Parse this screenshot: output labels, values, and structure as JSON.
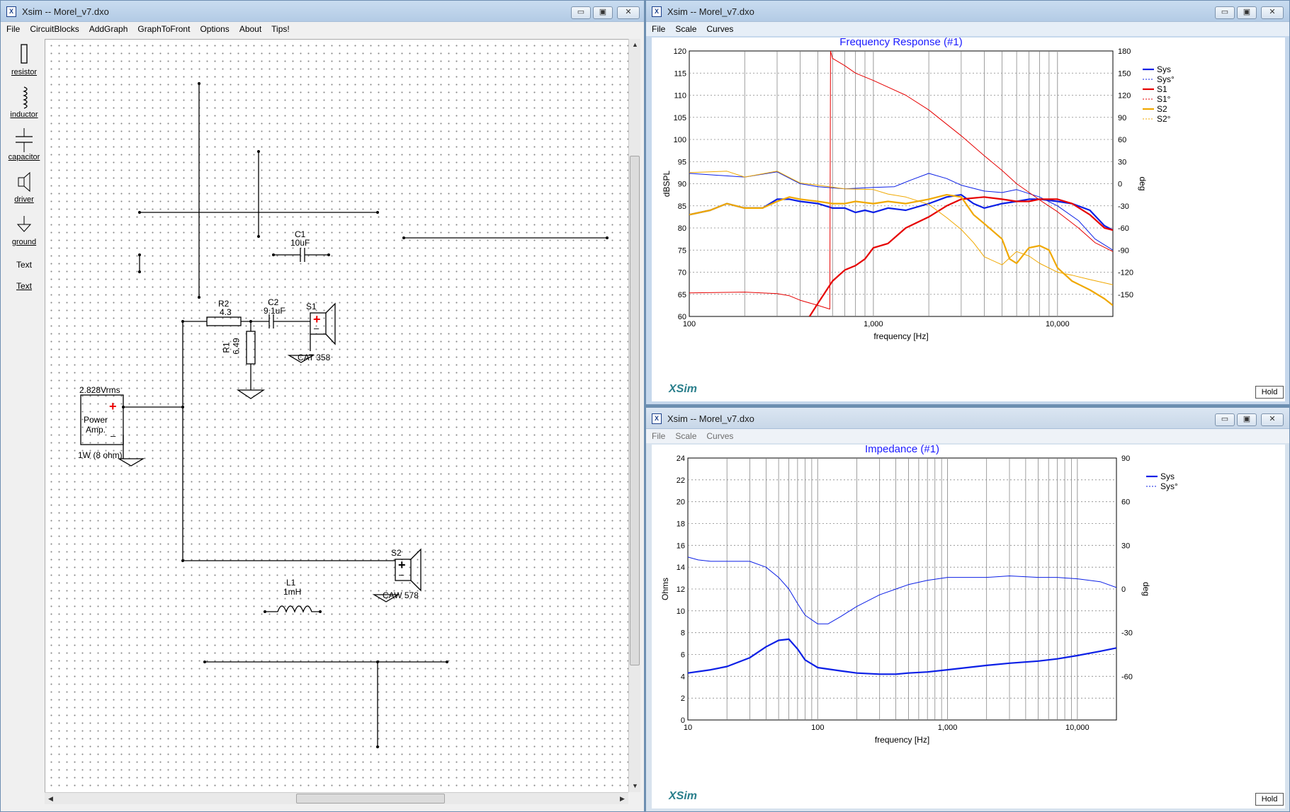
{
  "windows": {
    "schematic": {
      "title": "Xsim -- Morel_v7.dxo",
      "menu": [
        "File",
        "CircuitBlocks",
        "AddGraph",
        "GraphToFront",
        "Options",
        "About",
        "Tips!"
      ],
      "tools": [
        "resistor",
        "inductor",
        "capacitor",
        "driver",
        "ground",
        "Text",
        "Text"
      ],
      "components": {
        "source_voltage": "2.828Vrms",
        "amp_label_1": "Power",
        "amp_label_2": "Amp.",
        "amp_power": "1W (8 ohm)",
        "c1_name": "C1",
        "c1_value": "10uF",
        "r2_name": "R2",
        "r2_value": "4.3",
        "c2_name": "C2",
        "c2_value": "9.1uF",
        "r1_name": "R1",
        "r1_value": "6.49",
        "s1_name": "S1",
        "s1_model": "CAT 358",
        "s2_name": "S2",
        "s2_model": "CAW 578",
        "l1_name": "L1",
        "l1_value": "1mH",
        "plus": "+",
        "minus": "–"
      }
    },
    "freq": {
      "title": "Xsim -- Morel_v7.dxo",
      "menu": [
        "File",
        "Scale",
        "Curves"
      ],
      "hold": "Hold",
      "logo": "XSim"
    },
    "imp": {
      "title": "Xsim -- Morel_v7.dxo",
      "menu": [
        "File",
        "Scale",
        "Curves"
      ],
      "hold": "Hold",
      "logo": "XSim"
    },
    "controls": {
      "minimize": "▭",
      "maximize": "▣",
      "close": "✕"
    }
  },
  "chart_data": [
    {
      "type": "line",
      "title": "Frequency Response (#1)",
      "xlabel": "frequency [Hz]",
      "ylabel": "dBSPL",
      "y2label": "deg",
      "xscale": "log",
      "xlim": [
        100,
        20000
      ],
      "ylim": [
        60,
        120
      ],
      "y2lim": [
        -180,
        180
      ],
      "xticks": [
        "100",
        "1,000",
        "10,000"
      ],
      "yticks": [
        "60",
        "65",
        "70",
        "75",
        "80",
        "85",
        "90",
        "95",
        "100",
        "105",
        "110",
        "115",
        "120"
      ],
      "y2ticks": [
        "-150",
        "-120",
        "-90",
        "-60",
        "-30",
        "0",
        "30",
        "60",
        "90",
        "120",
        "150",
        "180"
      ],
      "grid": true,
      "legend_position": "top-right",
      "series": [
        {
          "name": "Sys",
          "axis": "left",
          "style": "solid-thick",
          "color": "#0b1fe6",
          "points": [
            [
              100,
              83
            ],
            [
              130,
              84
            ],
            [
              160,
              85.5
            ],
            [
              200,
              84.5
            ],
            [
              250,
              84.5
            ],
            [
              300,
              86.5
            ],
            [
              350,
              86.5
            ],
            [
              400,
              86
            ],
            [
              500,
              85.5
            ],
            [
              600,
              84.5
            ],
            [
              700,
              84.5
            ],
            [
              800,
              83.5
            ],
            [
              900,
              84
            ],
            [
              1000,
              83.5
            ],
            [
              1200,
              84.5
            ],
            [
              1500,
              84
            ],
            [
              2000,
              85.5
            ],
            [
              2500,
              87
            ],
            [
              3000,
              87.5
            ],
            [
              3500,
              85.5
            ],
            [
              4000,
              84.5
            ],
            [
              5000,
              85.5
            ],
            [
              6000,
              86
            ],
            [
              7000,
              86.5
            ],
            [
              8000,
              86.5
            ],
            [
              10000,
              86
            ],
            [
              12000,
              85.5
            ],
            [
              15000,
              84
            ],
            [
              18000,
              80.5
            ],
            [
              20000,
              79.5
            ]
          ]
        },
        {
          "name": "Sys°",
          "axis": "right",
          "style": "dotted",
          "color": "#0b1fe6",
          "points": [
            [
              100,
              14
            ],
            [
              200,
              9
            ],
            [
              300,
              16
            ],
            [
              400,
              0
            ],
            [
              500,
              -4
            ],
            [
              700,
              -7
            ],
            [
              1000,
              -5
            ],
            [
              1300,
              -4
            ],
            [
              1600,
              5
            ],
            [
              2000,
              14
            ],
            [
              2500,
              7
            ],
            [
              3000,
              -2
            ],
            [
              4000,
              -10
            ],
            [
              5000,
              -12
            ],
            [
              6000,
              -8
            ],
            [
              8000,
              -18
            ],
            [
              10000,
              -30
            ],
            [
              13000,
              -50
            ],
            [
              16000,
              -75
            ],
            [
              20000,
              -90
            ]
          ]
        },
        {
          "name": "S1",
          "axis": "left",
          "style": "solid-thick",
          "color": "#e60000",
          "points": [
            [
              450,
              60
            ],
            [
              500,
              63
            ],
            [
              600,
              68
            ],
            [
              700,
              70.5
            ],
            [
              800,
              71.5
            ],
            [
              900,
              73
            ],
            [
              1000,
              75.5
            ],
            [
              1200,
              76.5
            ],
            [
              1500,
              80
            ],
            [
              2000,
              82.5
            ],
            [
              2500,
              85
            ],
            [
              3000,
              86.5
            ],
            [
              4000,
              87
            ],
            [
              5000,
              86.5
            ],
            [
              6000,
              86
            ],
            [
              7000,
              86
            ],
            [
              8000,
              86.5
            ],
            [
              10000,
              86.5
            ],
            [
              12000,
              85.5
            ],
            [
              15000,
              83
            ],
            [
              18000,
              80
            ],
            [
              20000,
              79.5
            ]
          ]
        },
        {
          "name": "S1°",
          "axis": "right",
          "style": "dotted",
          "color": "#e60000",
          "points": [
            [
              100,
              -148
            ],
            [
              200,
              -147
            ],
            [
              300,
              -149
            ],
            [
              350,
              -152
            ],
            [
              400,
              -158
            ],
            [
              500,
              -165
            ],
            [
              580,
              -170
            ],
            [
              585,
              180
            ],
            [
              600,
              170
            ],
            [
              700,
              160
            ],
            [
              800,
              150
            ],
            [
              1000,
              140
            ],
            [
              1500,
              120
            ],
            [
              2000,
              100
            ],
            [
              3000,
              65
            ],
            [
              4000,
              38
            ],
            [
              5000,
              18
            ],
            [
              6000,
              0
            ],
            [
              8000,
              -22
            ],
            [
              10000,
              -38
            ],
            [
              13000,
              -60
            ],
            [
              16000,
              -80
            ],
            [
              20000,
              -92
            ]
          ]
        },
        {
          "name": "S2",
          "axis": "left",
          "style": "solid-thick",
          "color": "#f0a800",
          "points": [
            [
              100,
              83
            ],
            [
              130,
              84
            ],
            [
              160,
              85.5
            ],
            [
              200,
              84.5
            ],
            [
              250,
              84.5
            ],
            [
              300,
              86
            ],
            [
              350,
              87
            ],
            [
              400,
              86.5
            ],
            [
              500,
              86
            ],
            [
              600,
              85.5
            ],
            [
              700,
              85.5
            ],
            [
              800,
              86
            ],
            [
              1000,
              85.5
            ],
            [
              1200,
              86
            ],
            [
              1500,
              85.5
            ],
            [
              2000,
              86.5
            ],
            [
              2500,
              87.5
            ],
            [
              3000,
              87
            ],
            [
              3500,
              83
            ],
            [
              4000,
              81
            ],
            [
              5000,
              77.5
            ],
            [
              5500,
              73
            ],
            [
              6000,
              72
            ],
            [
              7000,
              75.5
            ],
            [
              8000,
              76
            ],
            [
              9000,
              75
            ],
            [
              10000,
              71
            ],
            [
              12000,
              68
            ],
            [
              15000,
              66
            ],
            [
              18000,
              64
            ],
            [
              20000,
              62.5
            ]
          ]
        },
        {
          "name": "S2°",
          "axis": "right",
          "style": "dotted",
          "color": "#f0a800",
          "points": [
            [
              100,
              15
            ],
            [
              160,
              17
            ],
            [
              200,
              9
            ],
            [
              300,
              17
            ],
            [
              400,
              1
            ],
            [
              500,
              -2
            ],
            [
              700,
              -7
            ],
            [
              1000,
              -8
            ],
            [
              1200,
              -14
            ],
            [
              1500,
              -18
            ],
            [
              2000,
              -28
            ],
            [
              2500,
              -46
            ],
            [
              3000,
              -62
            ],
            [
              3500,
              -80
            ],
            [
              4000,
              -99
            ],
            [
              5000,
              -110
            ],
            [
              6000,
              -92
            ],
            [
              7000,
              -98
            ],
            [
              8000,
              -108
            ],
            [
              10000,
              -120
            ],
            [
              12000,
              -124
            ],
            [
              15000,
              -130
            ],
            [
              20000,
              -137
            ]
          ]
        }
      ]
    },
    {
      "type": "line",
      "title": "Impedance (#1)",
      "xlabel": "frequency [Hz]",
      "ylabel": "Ohms",
      "y2label": "deg",
      "xscale": "log",
      "xlim": [
        10,
        20000
      ],
      "ylim": [
        0,
        24
      ],
      "y2lim": [
        -90,
        90
      ],
      "xticks": [
        "10",
        "100",
        "1,000",
        "10,000"
      ],
      "yticks": [
        "0",
        "2",
        "4",
        "6",
        "8",
        "10",
        "12",
        "14",
        "16",
        "18",
        "20",
        "22",
        "24"
      ],
      "y2ticks": [
        "-60",
        "-30",
        "0",
        "30",
        "60",
        "90"
      ],
      "grid": true,
      "legend_position": "top-right",
      "series": [
        {
          "name": "Sys",
          "axis": "left",
          "style": "solid-thick",
          "color": "#0b1fe6",
          "points": [
            [
              10,
              4.3
            ],
            [
              15,
              4.6
            ],
            [
              20,
              4.9
            ],
            [
              30,
              5.7
            ],
            [
              40,
              6.7
            ],
            [
              50,
              7.3
            ],
            [
              60,
              7.4
            ],
            [
              70,
              6.5
            ],
            [
              80,
              5.5
            ],
            [
              100,
              4.8
            ],
            [
              150,
              4.5
            ],
            [
              200,
              4.3
            ],
            [
              300,
              4.2
            ],
            [
              400,
              4.2
            ],
            [
              500,
              4.3
            ],
            [
              700,
              4.4
            ],
            [
              1000,
              4.6
            ],
            [
              2000,
              5.0
            ],
            [
              3000,
              5.2
            ],
            [
              5000,
              5.4
            ],
            [
              7000,
              5.6
            ],
            [
              10000,
              5.9
            ],
            [
              15000,
              6.3
            ],
            [
              20000,
              6.6
            ]
          ]
        },
        {
          "name": "Sys°",
          "axis": "right",
          "style": "dotted",
          "color": "#0b1fe6",
          "points": [
            [
              10,
              22
            ],
            [
              12,
              20
            ],
            [
              15,
              19
            ],
            [
              20,
              19
            ],
            [
              30,
              19
            ],
            [
              40,
              15
            ],
            [
              50,
              8
            ],
            [
              60,
              0
            ],
            [
              70,
              -10
            ],
            [
              80,
              -18
            ],
            [
              100,
              -24
            ],
            [
              120,
              -24
            ],
            [
              150,
              -19
            ],
            [
              200,
              -12
            ],
            [
              300,
              -4
            ],
            [
              500,
              3
            ],
            [
              700,
              6
            ],
            [
              1000,
              8
            ],
            [
              2000,
              8
            ],
            [
              3000,
              9
            ],
            [
              5000,
              8
            ],
            [
              7000,
              8
            ],
            [
              10000,
              7
            ],
            [
              15000,
              5
            ],
            [
              20000,
              1
            ]
          ]
        }
      ]
    }
  ]
}
